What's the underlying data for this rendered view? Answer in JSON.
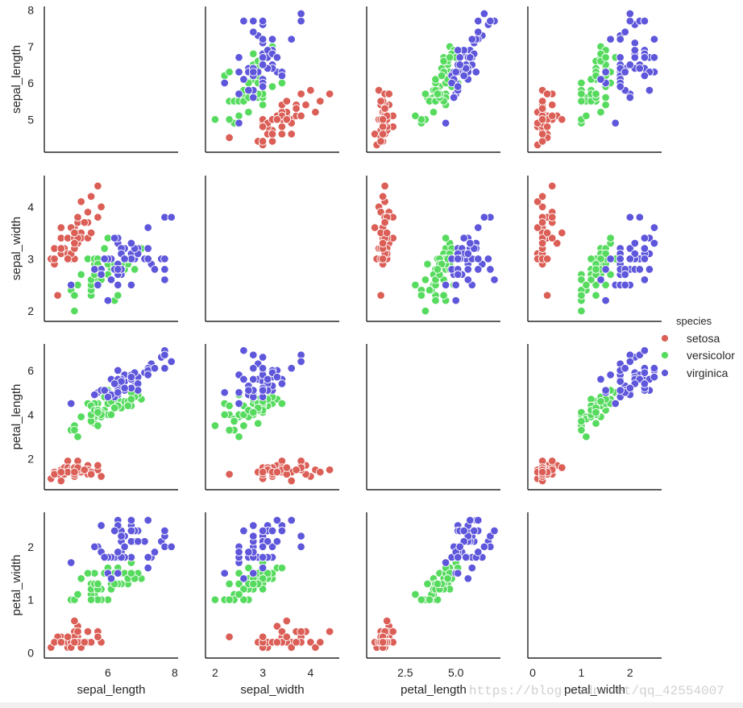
{
  "chart_data": {
    "type": "scatter",
    "kind": "pairplot",
    "variables": [
      "sepal_length",
      "sepal_width",
      "petal_length",
      "petal_width"
    ],
    "diagonal": "empty",
    "ticks": {
      "sepal_length": {
        "range": [
          4.1,
          8.1
        ],
        "ticks": [
          5,
          6,
          7,
          8
        ],
        "tick_labels": [
          "5",
          "6",
          "7",
          "8"
        ],
        "x_ticks": [
          6,
          8
        ],
        "x_tick_labels": [
          "6",
          "8"
        ]
      },
      "sepal_width": {
        "range": [
          1.8,
          4.6
        ],
        "ticks": [
          2,
          3,
          4
        ],
        "tick_labels": [
          "2",
          "3",
          "4"
        ]
      },
      "petal_length": {
        "range": [
          0.6,
          7.2
        ],
        "ticks": [
          2,
          4,
          6
        ],
        "tick_labels": [
          "2",
          "4",
          "6"
        ],
        "x_ticks": [
          2.5,
          5.0
        ],
        "x_tick_labels": [
          "2.5",
          "5.0"
        ]
      },
      "petal_width": {
        "range": [
          -0.1,
          2.65
        ],
        "ticks": [
          0,
          1,
          2
        ],
        "tick_labels": [
          "0",
          "1",
          "2"
        ]
      }
    },
    "legend": {
      "title": "species",
      "position": "right",
      "entries": [
        {
          "label": "setosa",
          "color": "#db5f57"
        },
        {
          "label": "versicolor",
          "color": "#57db5f"
        },
        {
          "label": "virginica",
          "color": "#5f57db"
        }
      ]
    },
    "series": [
      {
        "name": "setosa",
        "color": "#db5f57",
        "values": [
          [
            5.1,
            3.5,
            1.4,
            0.2
          ],
          [
            4.9,
            3.0,
            1.4,
            0.2
          ],
          [
            4.7,
            3.2,
            1.3,
            0.2
          ],
          [
            4.6,
            3.1,
            1.5,
            0.2
          ],
          [
            5.0,
            3.6,
            1.4,
            0.2
          ],
          [
            5.4,
            3.9,
            1.7,
            0.4
          ],
          [
            4.6,
            3.4,
            1.4,
            0.3
          ],
          [
            5.0,
            3.4,
            1.5,
            0.2
          ],
          [
            4.4,
            2.9,
            1.4,
            0.2
          ],
          [
            4.9,
            3.1,
            1.5,
            0.1
          ],
          [
            5.4,
            3.7,
            1.5,
            0.2
          ],
          [
            4.8,
            3.4,
            1.6,
            0.2
          ],
          [
            4.8,
            3.0,
            1.4,
            0.1
          ],
          [
            4.3,
            3.0,
            1.1,
            0.1
          ],
          [
            5.8,
            4.0,
            1.2,
            0.2
          ],
          [
            5.7,
            4.4,
            1.5,
            0.4
          ],
          [
            5.4,
            3.9,
            1.3,
            0.4
          ],
          [
            5.1,
            3.5,
            1.4,
            0.3
          ],
          [
            5.7,
            3.8,
            1.7,
            0.3
          ],
          [
            5.1,
            3.8,
            1.5,
            0.3
          ],
          [
            5.4,
            3.4,
            1.7,
            0.2
          ],
          [
            5.1,
            3.7,
            1.5,
            0.4
          ],
          [
            4.6,
            3.6,
            1.0,
            0.2
          ],
          [
            5.1,
            3.3,
            1.7,
            0.5
          ],
          [
            4.8,
            3.4,
            1.9,
            0.2
          ],
          [
            5.0,
            3.0,
            1.6,
            0.2
          ],
          [
            5.0,
            3.4,
            1.6,
            0.4
          ],
          [
            5.2,
            3.5,
            1.5,
            0.2
          ],
          [
            5.2,
            3.4,
            1.4,
            0.2
          ],
          [
            4.7,
            3.2,
            1.6,
            0.2
          ],
          [
            4.8,
            3.1,
            1.6,
            0.2
          ],
          [
            5.4,
            3.4,
            1.5,
            0.4
          ],
          [
            5.2,
            4.1,
            1.5,
            0.1
          ],
          [
            5.5,
            4.2,
            1.4,
            0.2
          ],
          [
            4.9,
            3.1,
            1.5,
            0.2
          ],
          [
            5.0,
            3.2,
            1.2,
            0.2
          ],
          [
            5.5,
            3.5,
            1.3,
            0.2
          ],
          [
            4.9,
            3.6,
            1.4,
            0.1
          ],
          [
            4.4,
            3.0,
            1.3,
            0.2
          ],
          [
            5.1,
            3.4,
            1.5,
            0.2
          ],
          [
            5.0,
            3.5,
            1.3,
            0.3
          ],
          [
            4.5,
            2.3,
            1.3,
            0.3
          ],
          [
            4.4,
            3.2,
            1.3,
            0.2
          ],
          [
            5.0,
            3.5,
            1.6,
            0.6
          ],
          [
            5.1,
            3.8,
            1.9,
            0.4
          ],
          [
            4.8,
            3.0,
            1.4,
            0.3
          ],
          [
            5.1,
            3.8,
            1.6,
            0.2
          ],
          [
            4.6,
            3.2,
            1.4,
            0.2
          ],
          [
            5.3,
            3.7,
            1.5,
            0.2
          ],
          [
            5.0,
            3.3,
            1.4,
            0.2
          ]
        ]
      },
      {
        "name": "versicolor",
        "color": "#57db5f",
        "values": [
          [
            7.0,
            3.2,
            4.7,
            1.4
          ],
          [
            6.4,
            3.2,
            4.5,
            1.5
          ],
          [
            6.9,
            3.1,
            4.9,
            1.5
          ],
          [
            5.5,
            2.3,
            4.0,
            1.3
          ],
          [
            6.5,
            2.8,
            4.6,
            1.5
          ],
          [
            5.7,
            2.8,
            4.5,
            1.3
          ],
          [
            6.3,
            3.3,
            4.7,
            1.6
          ],
          [
            4.9,
            2.4,
            3.3,
            1.0
          ],
          [
            6.6,
            2.9,
            4.6,
            1.3
          ],
          [
            5.2,
            2.7,
            3.9,
            1.4
          ],
          [
            5.0,
            2.0,
            3.5,
            1.0
          ],
          [
            5.9,
            3.0,
            4.2,
            1.5
          ],
          [
            6.0,
            2.2,
            4.0,
            1.0
          ],
          [
            6.1,
            2.9,
            4.7,
            1.4
          ],
          [
            5.6,
            2.9,
            3.6,
            1.3
          ],
          [
            6.7,
            3.1,
            4.4,
            1.4
          ],
          [
            5.6,
            3.0,
            4.5,
            1.5
          ],
          [
            5.8,
            2.7,
            4.1,
            1.0
          ],
          [
            6.2,
            2.2,
            4.5,
            1.5
          ],
          [
            5.6,
            2.5,
            3.9,
            1.1
          ],
          [
            5.9,
            3.2,
            4.8,
            1.8
          ],
          [
            6.1,
            2.8,
            4.0,
            1.3
          ],
          [
            6.3,
            2.5,
            4.9,
            1.5
          ],
          [
            6.1,
            2.8,
            4.7,
            1.2
          ],
          [
            6.4,
            2.9,
            4.3,
            1.3
          ],
          [
            6.6,
            3.0,
            4.4,
            1.4
          ],
          [
            6.8,
            2.8,
            4.8,
            1.4
          ],
          [
            6.7,
            3.0,
            5.0,
            1.7
          ],
          [
            6.0,
            2.9,
            4.5,
            1.5
          ],
          [
            5.7,
            2.6,
            3.5,
            1.0
          ],
          [
            5.5,
            2.4,
            3.8,
            1.1
          ],
          [
            5.5,
            2.4,
            3.7,
            1.0
          ],
          [
            5.8,
            2.7,
            3.9,
            1.2
          ],
          [
            6.0,
            2.7,
            5.1,
            1.6
          ],
          [
            5.4,
            3.0,
            4.5,
            1.5
          ],
          [
            6.0,
            3.4,
            4.5,
            1.6
          ],
          [
            6.7,
            3.1,
            4.7,
            1.5
          ],
          [
            6.3,
            2.3,
            4.4,
            1.3
          ],
          [
            5.6,
            3.0,
            4.1,
            1.3
          ],
          [
            5.5,
            2.5,
            4.0,
            1.3
          ],
          [
            5.5,
            2.6,
            4.4,
            1.2
          ],
          [
            6.1,
            3.0,
            4.6,
            1.4
          ],
          [
            5.8,
            2.6,
            4.0,
            1.2
          ],
          [
            5.0,
            2.3,
            3.3,
            1.0
          ],
          [
            5.6,
            2.7,
            4.2,
            1.3
          ],
          [
            5.7,
            3.0,
            4.2,
            1.2
          ],
          [
            5.7,
            2.9,
            4.2,
            1.3
          ],
          [
            6.2,
            2.9,
            4.3,
            1.3
          ],
          [
            5.1,
            2.5,
            3.0,
            1.1
          ],
          [
            5.7,
            2.8,
            4.1,
            1.3
          ]
        ]
      },
      {
        "name": "virginica",
        "color": "#5f57db",
        "values": [
          [
            6.3,
            3.3,
            6.0,
            2.5
          ],
          [
            5.8,
            2.7,
            5.1,
            1.9
          ],
          [
            7.1,
            3.0,
            5.9,
            2.1
          ],
          [
            6.3,
            2.9,
            5.6,
            1.8
          ],
          [
            6.5,
            3.0,
            5.8,
            2.2
          ],
          [
            7.6,
            3.0,
            6.6,
            2.1
          ],
          [
            4.9,
            2.5,
            4.5,
            1.7
          ],
          [
            7.3,
            2.9,
            6.3,
            1.8
          ],
          [
            6.7,
            2.5,
            5.8,
            1.8
          ],
          [
            7.2,
            3.6,
            6.1,
            2.5
          ],
          [
            6.5,
            3.2,
            5.1,
            2.0
          ],
          [
            6.4,
            2.7,
            5.3,
            1.9
          ],
          [
            6.8,
            3.0,
            5.5,
            2.1
          ],
          [
            5.7,
            2.5,
            5.0,
            2.0
          ],
          [
            5.8,
            2.8,
            5.1,
            2.4
          ],
          [
            6.4,
            3.2,
            5.3,
            2.3
          ],
          [
            6.5,
            3.0,
            5.5,
            1.8
          ],
          [
            7.7,
            3.8,
            6.7,
            2.2
          ],
          [
            7.7,
            2.6,
            6.9,
            2.3
          ],
          [
            6.0,
            2.2,
            5.0,
            1.5
          ],
          [
            6.9,
            3.2,
            5.7,
            2.3
          ],
          [
            5.6,
            2.8,
            4.9,
            2.0
          ],
          [
            7.7,
            2.8,
            6.7,
            2.0
          ],
          [
            6.3,
            2.7,
            4.9,
            1.8
          ],
          [
            6.7,
            3.3,
            5.7,
            2.1
          ],
          [
            7.2,
            3.2,
            6.0,
            1.8
          ],
          [
            6.2,
            2.8,
            4.8,
            1.8
          ],
          [
            6.1,
            3.0,
            4.9,
            1.8
          ],
          [
            6.4,
            2.8,
            5.6,
            2.1
          ],
          [
            7.2,
            3.0,
            5.8,
            1.6
          ],
          [
            7.4,
            2.8,
            6.1,
            1.9
          ],
          [
            7.9,
            3.8,
            6.4,
            2.0
          ],
          [
            6.4,
            2.8,
            5.6,
            2.2
          ],
          [
            6.3,
            2.8,
            5.1,
            1.5
          ],
          [
            6.1,
            2.6,
            5.6,
            1.4
          ],
          [
            7.7,
            3.0,
            6.1,
            2.3
          ],
          [
            6.3,
            3.4,
            5.6,
            2.4
          ],
          [
            6.4,
            3.1,
            5.5,
            1.8
          ],
          [
            6.0,
            3.0,
            4.8,
            1.8
          ],
          [
            6.9,
            3.1,
            5.4,
            2.1
          ],
          [
            6.7,
            3.1,
            5.6,
            2.4
          ],
          [
            6.9,
            3.1,
            5.1,
            2.3
          ],
          [
            5.8,
            2.7,
            5.1,
            1.9
          ],
          [
            6.8,
            3.2,
            5.9,
            2.3
          ],
          [
            6.7,
            3.3,
            5.7,
            2.5
          ],
          [
            6.7,
            3.0,
            5.2,
            2.3
          ],
          [
            6.3,
            2.5,
            5.0,
            1.9
          ],
          [
            6.5,
            3.0,
            5.2,
            2.0
          ],
          [
            6.2,
            3.4,
            5.4,
            2.3
          ],
          [
            5.9,
            3.0,
            5.1,
            1.8
          ]
        ]
      }
    ]
  },
  "watermark": "https://blog.csdn.net/qq_42554007"
}
